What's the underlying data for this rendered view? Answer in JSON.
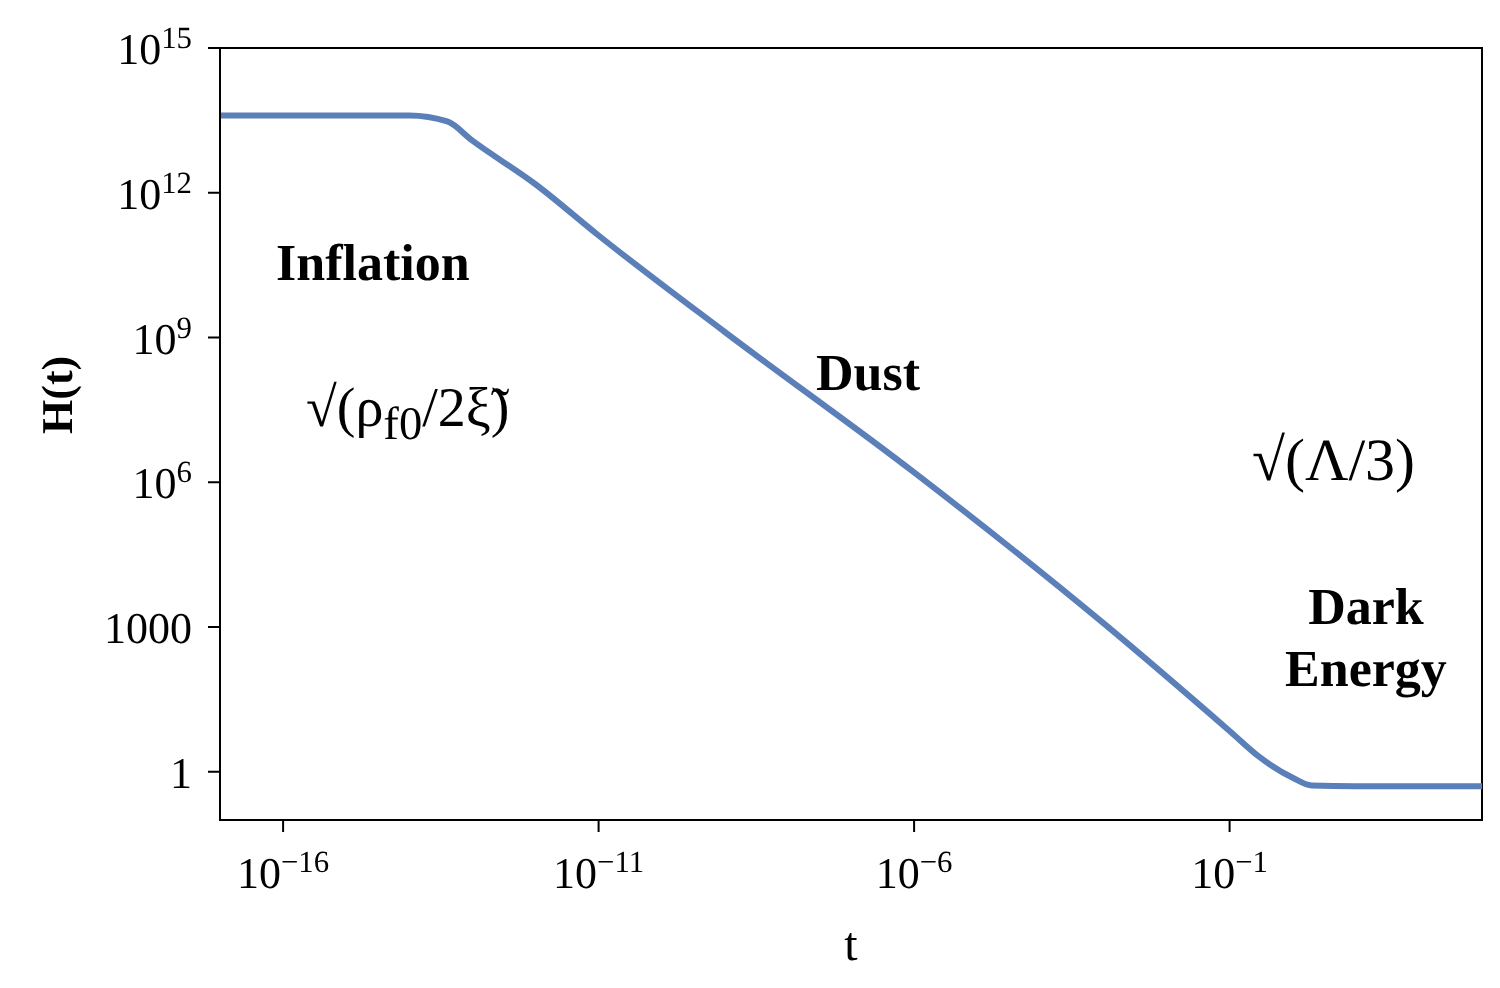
{
  "chart_data": {
    "type": "line",
    "xlabel": "t",
    "ylabel": "H(t)",
    "log": "xy",
    "marker": "none",
    "line_style": "solid",
    "xlim": [
      1e-17,
      1000
    ],
    "ylim": [
      0.1,
      1000000000000000.0
    ],
    "xticks": [
      {
        "value": 1e-16,
        "label": "10$^{−16}$"
      },
      {
        "value": 1e-11,
        "label": "10$^{−11}$"
      },
      {
        "value": 1e-06,
        "label": "10$^{−6}$"
      },
      {
        "value": 0.1,
        "label": "10$^{−1}$"
      }
    ],
    "yticks": [
      1,
      1000,
      {
        "value": 1000000.0,
        "label": "10$^{6}$"
      },
      {
        "value": 1000000000.0,
        "label": "10$^{9}$"
      },
      {
        "value": 1000000000000.0,
        "label": "10$^{12}$"
      },
      {
        "value": 1000000000000000.0,
        "label": "10$^{15}$"
      }
    ],
    "x": [
      1e-17,
      1e-15,
      1e-14,
      4e-14,
      1e-13,
      1e-12,
      1e-11,
      1e-09,
      1e-06,
      0.001,
      0.1,
      0.3,
      1,
      2,
      10,
      1000
    ],
    "series": [
      {
        "color": "#5b7fb8",
        "values": [
          40000000000000.0,
          40000000000000.0,
          40000000000000.0,
          30000000000000.0,
          12000000000000.0,
          1500000000000.0,
          130000000000.0,
          1300000000.0,
          1600000.0,
          1200,
          7,
          2,
          0.75,
          0.52,
          0.5,
          0.5
        ]
      }
    ],
    "annotations": [
      "Inflation",
      "√(ρ$_{f0}$/2ξ̃)",
      "Dust",
      "√(Λ/3)",
      "Dark Energy"
    ]
  }
}
